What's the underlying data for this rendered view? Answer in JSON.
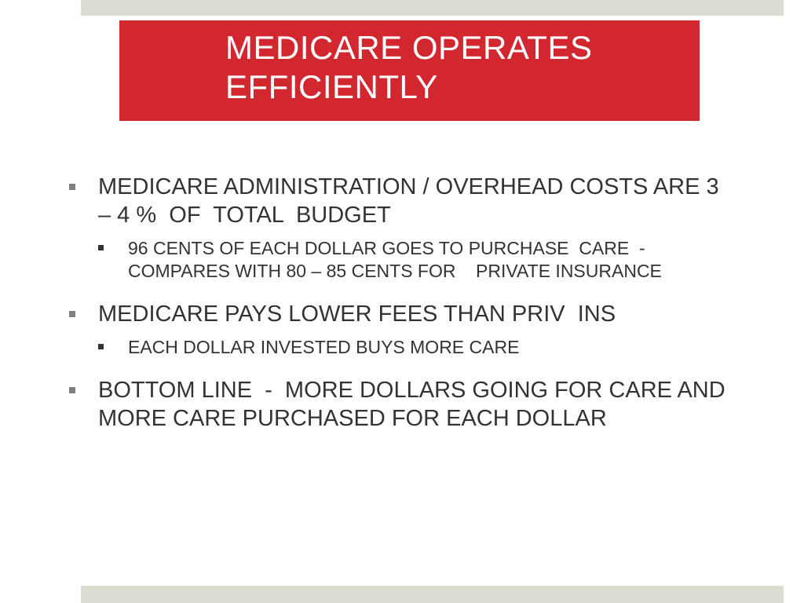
{
  "title": "MEDICARE OPERATES\nEFFICIENTLY",
  "bullets": [
    {
      "text": "MEDICARE ADMINISTRATION / OVERHEAD COSTS ARE 3 – 4 %  OF  TOTAL  BUDGET",
      "sub": [
        "96 CENTS OF EACH DOLLAR GOES TO PURCHASE  CARE  -  COMPARES WITH 80 – 85 CENTS FOR    PRIVATE INSURANCE"
      ]
    },
    {
      "text": "MEDICARE PAYS LOWER FEES THAN PRIV  INS",
      "sub": [
        "EACH DOLLAR INVESTED BUYS MORE CARE"
      ]
    },
    {
      "text": "BOTTOM LINE  -  MORE DOLLARS GOING FOR CARE AND MORE CARE PURCHASED FOR EACH DOLLAR",
      "sub": []
    }
  ],
  "colors": {
    "title_bg": "#d2272e",
    "band": "#dddcd2",
    "text": "#333333"
  }
}
